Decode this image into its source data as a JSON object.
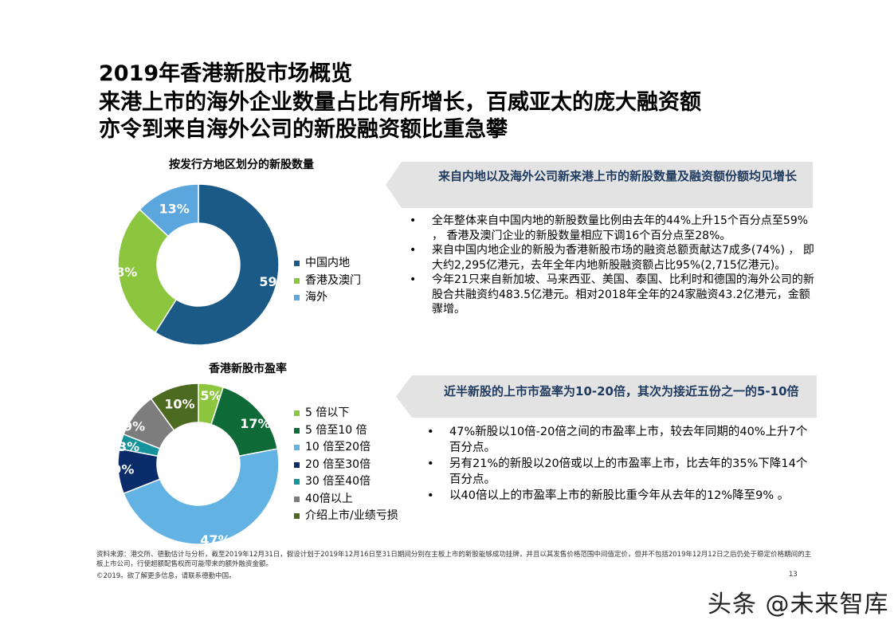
{
  "header": {
    "title": "2019年香港新股市场概览",
    "subtitle": "来港上市的海外企业数量占比有所增长，百威亚太的庞大融资额亦令到来自海外公司的新股融资额比重急攀"
  },
  "chart_data": [
    {
      "type": "pie",
      "title": "按发行方地区划分的新股数量",
      "legend_position": "right",
      "categories": [
        "中国内地",
        "香港及澳门",
        "海外"
      ],
      "values": [
        59,
        28,
        13
      ],
      "labels": [
        "59%",
        "28%",
        "13%"
      ],
      "colors": [
        "#1b5a86",
        "#8cc63f",
        "#5ba7dd"
      ]
    },
    {
      "type": "pie",
      "title": "香港新股市盈率",
      "legend_position": "right",
      "categories": [
        "5 倍以下",
        "5 倍至10 倍",
        "10 倍至20倍",
        "20 倍至30倍",
        "30 倍至40倍",
        "40倍以上",
        "介绍上市/业绩亏损"
      ],
      "values": [
        5,
        17,
        47,
        9,
        3,
        9,
        10
      ],
      "labels": [
        "5%",
        "17%",
        "47%",
        "9%",
        "3%",
        "9%",
        "10%"
      ],
      "colors": [
        "#8cc63f",
        "#0e6b38",
        "#62b2e3",
        "#0b2c6b",
        "#14939c",
        "#7d7d7d",
        "#4d6b20"
      ]
    }
  ],
  "callouts": {
    "top": {
      "heading": "来自内地以及海外公司新来港上市的新股数量及融资额份额均见增长",
      "bullets": [
        "全年整体来自中国内地的新股数量比例由去年的44%上升15个百分点至59% ， 香港及澳门企业的新股数量相应下调16个百分点至28%。",
        "来自中国内地企业的新股为香港新股市场的融资总额贡献达7成多(74%) ， 即大约2,295亿港元，去年全年内地新股融资额占比95%(2,715亿港元)。",
        "今年21只来自新加坡、马来西亚、美国、泰国、比利时和德国的海外公司的新股合共融资约483.5亿港元。相对2018年全年的24家融资43.2亿港元，金额骤增。"
      ]
    },
    "bottom": {
      "heading": "近半新股的上市市盈率为10-20倍，其次为接近五份之一的5-10倍",
      "bullets": [
        "47%新股以10倍-20倍之间的市盈率上市，较去年同期的40%上升7个百分点。",
        "另有21%的新股以20倍或以上的市盈率上市，比去年的35%下降14个百分点。",
        "以40倍以上的市盈率上市的新股比重今年从去年的12%降至9% 。"
      ]
    }
  },
  "footer": {
    "source": "资料来源：港交所、德勤估计与分析，截至2019年12月31日，假设计划于2019年12月16日至31日期间分别在主板上市的新股能够成功挂牌，并且以其发售价格范围中间值定价，但并不包括2019年12月12日之后仍处于稳定价格期间的主板上市公司，行使超额配售权而可能带来的额外融资金额。",
    "copyright": "©2019。欲了解更多信息，请联系德勤中国。",
    "page_number": "13"
  },
  "watermark": "头条 @未来智库"
}
